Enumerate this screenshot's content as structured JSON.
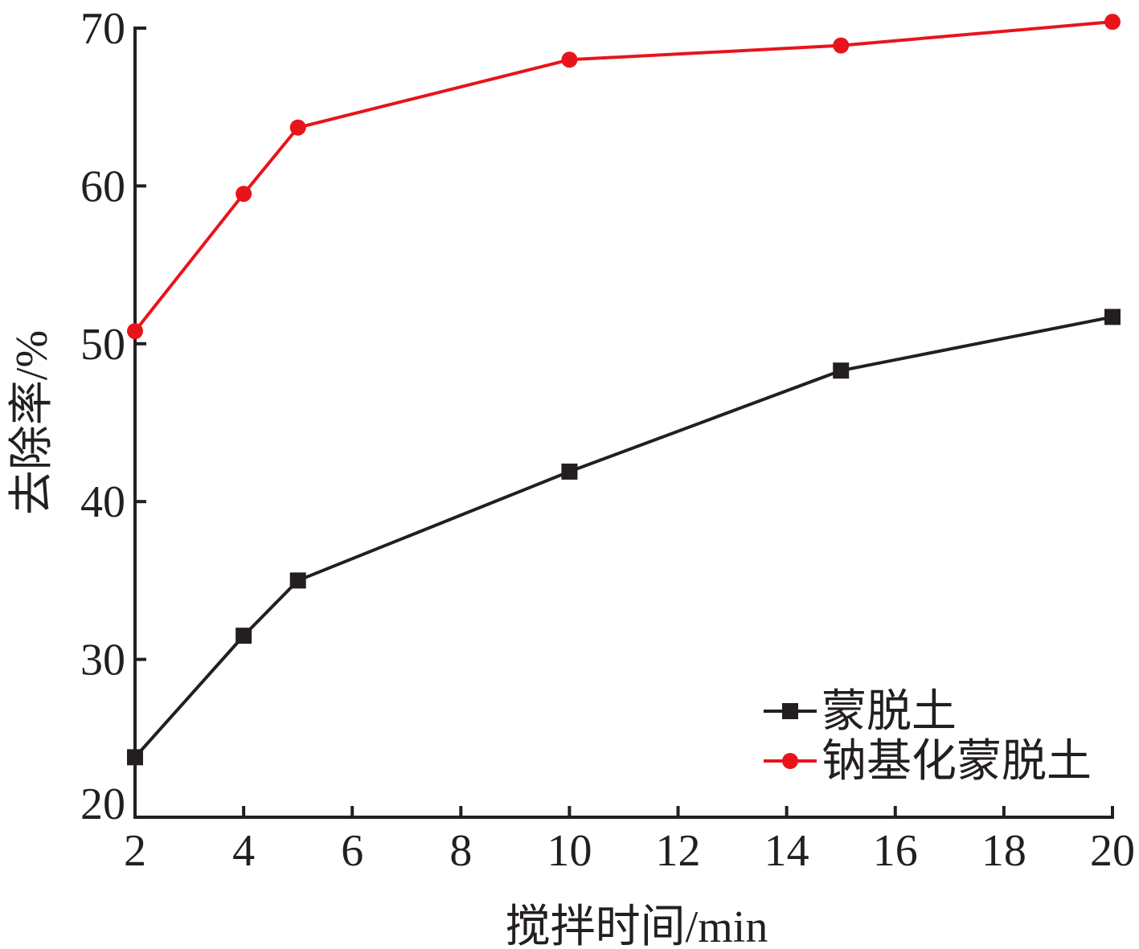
{
  "chart_data": {
    "type": "line",
    "title": "",
    "xlabel": "搅拌时间/min",
    "ylabel": "去除率/%",
    "xlim": [
      2,
      20
    ],
    "ylim": [
      20,
      70
    ],
    "xticks": [
      2,
      4,
      6,
      8,
      10,
      12,
      14,
      16,
      18,
      20
    ],
    "yticks": [
      20,
      30,
      40,
      50,
      60,
      70
    ],
    "grid": false,
    "legend_position": "bottom-right",
    "series": [
      {
        "name": "蒙脱土",
        "color": "#231f20",
        "marker": "square",
        "x": [
          2,
          4,
          5,
          10,
          15,
          20
        ],
        "y": [
          23.8,
          31.5,
          35.0,
          41.9,
          48.3,
          51.7
        ]
      },
      {
        "name": "钠基化蒙脱土",
        "color": "#e8141b",
        "marker": "circle",
        "x": [
          2,
          4,
          5,
          10,
          15,
          20
        ],
        "y": [
          50.8,
          59.5,
          63.7,
          68.0,
          68.9,
          70.4
        ]
      }
    ]
  }
}
